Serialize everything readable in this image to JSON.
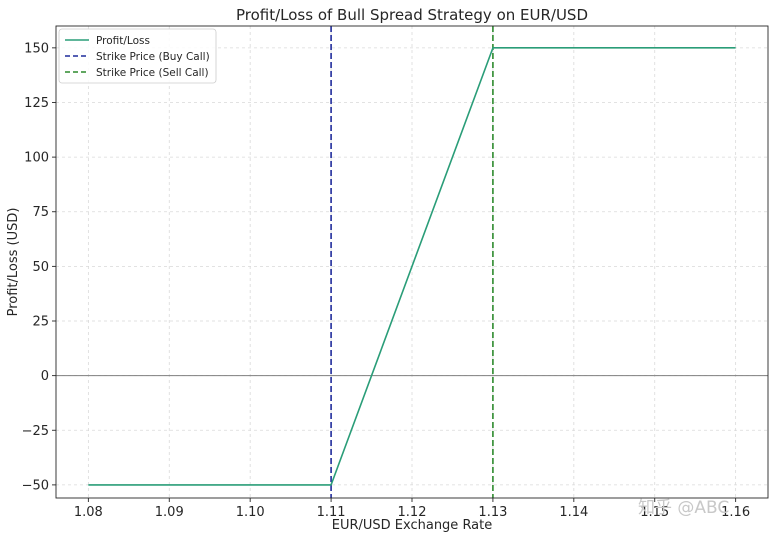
{
  "watermark": "知乎 @ABC",
  "colors": {
    "profit_line": "#2a9d78",
    "buy_strike": "#1f2c9c",
    "sell_strike": "#2d8a2d",
    "zero_line": "#7f7f7f",
    "grid": "#d9d9d9"
  },
  "chart_data": {
    "type": "line",
    "title": "Profit/Loss of Bull Spread Strategy on EUR/USD",
    "xlabel": "EUR/USD Exchange Rate",
    "ylabel": "Profit/Loss (USD)",
    "xlim": [
      1.076,
      1.164
    ],
    "ylim": [
      -56,
      160
    ],
    "x_ticks": [
      1.08,
      1.09,
      1.1,
      1.11,
      1.12,
      1.13,
      1.14,
      1.15,
      1.16
    ],
    "x_tick_labels": [
      "1.08",
      "1.09",
      "1.10",
      "1.11",
      "1.12",
      "1.13",
      "1.14",
      "1.15",
      "1.16"
    ],
    "y_ticks": [
      -50,
      -25,
      0,
      25,
      50,
      75,
      100,
      125,
      150
    ],
    "y_tick_labels": [
      "−50",
      "−25",
      "0",
      "25",
      "50",
      "75",
      "100",
      "125",
      "150"
    ],
    "grid": true,
    "legend_position": "top-left",
    "series": [
      {
        "name": "Profit/Loss",
        "style": "solid",
        "color": "#2a9d78",
        "x": [
          1.08,
          1.11,
          1.13,
          1.16
        ],
        "y": [
          -50,
          -50,
          150,
          150
        ]
      }
    ],
    "reference_lines": [
      {
        "name": "Strike Price (Buy Call)",
        "orientation": "vertical",
        "x": 1.11,
        "style": "dashed",
        "color": "#1f2c9c"
      },
      {
        "name": "Strike Price (Sell Call)",
        "orientation": "vertical",
        "x": 1.13,
        "style": "dashed",
        "color": "#2d8a2d"
      },
      {
        "name": "",
        "orientation": "horizontal",
        "y": 0,
        "style": "solid",
        "color": "#7f7f7f"
      }
    ],
    "legend": [
      "Profit/Loss",
      "Strike Price (Buy Call)",
      "Strike Price (Sell Call)"
    ]
  }
}
